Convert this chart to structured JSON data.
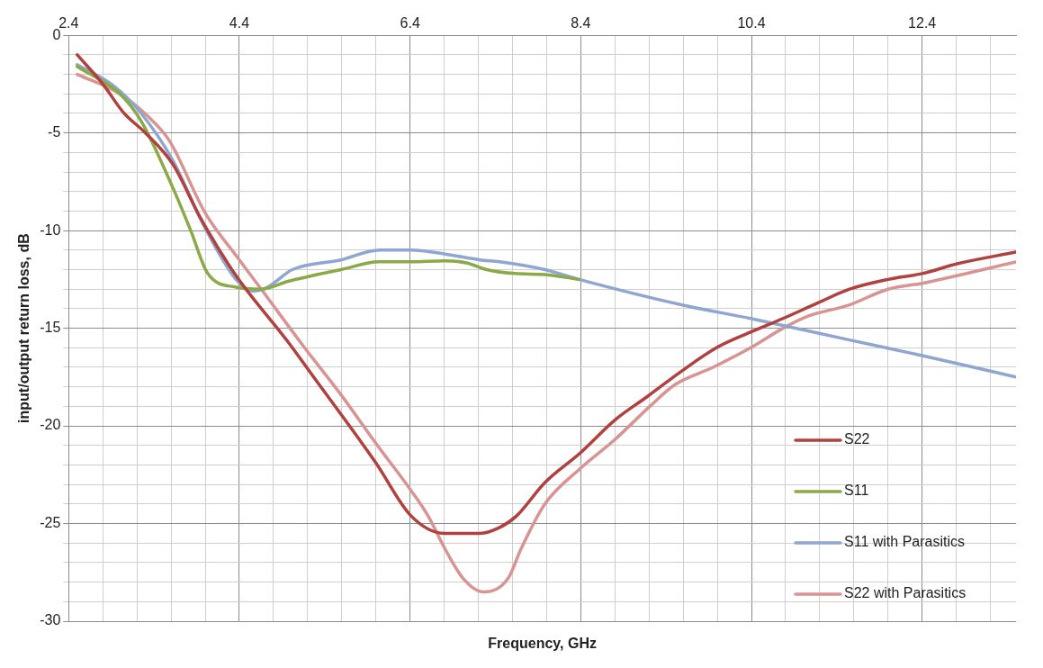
{
  "chart_data": {
    "type": "line",
    "xlabel": "Frequency, GHz",
    "ylabel": "input/output return loss, dB",
    "xlim": [
      2.4,
      13.5
    ],
    "ylim": [
      -30,
      0
    ],
    "xticks": [
      2.4,
      {
        "value": 2.8,
        "label": null
      },
      {
        "value": 3.2,
        "label": null
      },
      {
        "value": 3.6,
        "label": null
      },
      {
        "value": 4.0,
        "label": null
      },
      4.4,
      {
        "value": 4.8,
        "label": null
      },
      {
        "value": 5.2,
        "label": null
      },
      {
        "value": 5.6,
        "label": null
      },
      {
        "value": 6.0,
        "label": null
      },
      6.4,
      {
        "value": 6.8,
        "label": null
      },
      {
        "value": 7.2,
        "label": null
      },
      {
        "value": 7.6,
        "label": null
      },
      {
        "value": 8.0,
        "label": null
      },
      8.4,
      {
        "value": 8.8,
        "label": null
      },
      {
        "value": 9.2,
        "label": null
      },
      {
        "value": 9.6,
        "label": null
      },
      {
        "value": 10.0,
        "label": null
      },
      10.4,
      {
        "value": 10.8,
        "label": null
      },
      {
        "value": 11.2,
        "label": null
      },
      {
        "value": 11.6,
        "label": null
      },
      {
        "value": 12.0,
        "label": null
      },
      12.4,
      {
        "value": 12.8,
        "label": null
      },
      {
        "value": 13.2,
        "label": null
      }
    ],
    "yticks": [
      -30,
      {
        "value": -29,
        "label": null
      },
      {
        "value": -28,
        "label": null
      },
      {
        "value": -27,
        "label": null
      },
      {
        "value": -26,
        "label": null
      },
      -25,
      {
        "value": -24,
        "label": null
      },
      {
        "value": -23,
        "label": null
      },
      {
        "value": -22,
        "label": null
      },
      {
        "value": -21,
        "label": null
      },
      -20,
      {
        "value": -19,
        "label": null
      },
      {
        "value": -18,
        "label": null
      },
      {
        "value": -17,
        "label": null
      },
      {
        "value": -16,
        "label": null
      },
      -15,
      {
        "value": -14,
        "label": null
      },
      {
        "value": -13,
        "label": null
      },
      {
        "value": -12,
        "label": null
      },
      {
        "value": -11,
        "label": null
      },
      -10,
      {
        "value": -9,
        "label": null
      },
      {
        "value": -8,
        "label": null
      },
      {
        "value": -7,
        "label": null
      },
      {
        "value": -6,
        "label": null
      },
      -5,
      {
        "value": -4,
        "label": null
      },
      {
        "value": -3,
        "label": null
      },
      {
        "value": -2,
        "label": null
      },
      {
        "value": -1,
        "label": null
      },
      0
    ],
    "grid": true,
    "legend": "bottom right",
    "marker": "none",
    "line_style": "solid",
    "series": [
      {
        "name": "S22",
        "color": "#b0413e",
        "x": [
          2.5,
          2.8,
          3.05,
          3.3,
          3.62,
          3.95,
          4.36,
          4.97,
          5.22,
          6.0,
          6.41,
          6.8,
          7.22,
          7.45,
          7.65,
          7.98,
          8.39,
          8.8,
          9.18,
          9.58,
          9.99,
          10.39,
          10.77,
          11.18,
          11.55,
          12.0,
          12.4,
          12.81,
          13.5
        ],
        "values": [
          -1.0,
          -2.5,
          -4.0,
          -5.0,
          -6.6,
          -9.4,
          -12.3,
          -15.7,
          -17.2,
          -21.9,
          -24.6,
          -25.5,
          -25.5,
          -25.2,
          -24.6,
          -22.9,
          -21.4,
          -19.7,
          -18.5,
          -17.2,
          -16.0,
          -15.2,
          -14.5,
          -13.7,
          -13.0,
          -12.5,
          -12.2,
          -11.7,
          -11.1
        ]
      },
      {
        "name": "S11",
        "color": "#8aaa48",
        "x": [
          2.5,
          3.0,
          3.25,
          3.62,
          3.83,
          4.03,
          4.36,
          4.65,
          4.97,
          5.59,
          6.04,
          6.41,
          6.81,
          7.06,
          7.3,
          7.63,
          7.98,
          8.38
        ],
        "values": [
          -1.6,
          -3.0,
          -4.4,
          -7.8,
          -10.0,
          -12.2,
          -12.9,
          -13.0,
          -12.6,
          -12.0,
          -11.6,
          -11.6,
          -11.55,
          -11.65,
          -12.0,
          -12.2,
          -12.25,
          -12.5
        ]
      },
      {
        "name": "S11 with Parasitics",
        "color": "#8ea6d1",
        "x": [
          2.5,
          2.93,
          3.25,
          3.62,
          3.99,
          4.36,
          4.56,
          4.73,
          5.02,
          5.59,
          6.04,
          6.41,
          6.81,
          7.22,
          7.45,
          7.98,
          8.38,
          9.58,
          10.39,
          11.55,
          12.4,
          13.5
        ],
        "values": [
          -1.5,
          -2.6,
          -4.0,
          -6.4,
          -9.8,
          -12.5,
          -13.1,
          -12.9,
          -12.0,
          -11.5,
          -11.0,
          -11.0,
          -11.2,
          -11.5,
          -11.6,
          -12.0,
          -12.5,
          -13.8,
          -14.5,
          -15.6,
          -16.4,
          -17.5
        ]
      },
      {
        "name": "S22 with Parasitics",
        "color": "#d79492",
        "x": [
          2.5,
          3.0,
          3.34,
          3.58,
          4.0,
          4.4,
          4.69,
          5.13,
          5.59,
          6.0,
          6.41,
          6.61,
          6.81,
          7.02,
          7.26,
          7.55,
          7.7,
          7.98,
          8.39,
          8.8,
          9.21,
          9.5,
          9.95,
          10.39,
          10.77,
          11.05,
          11.55,
          12.0,
          12.4,
          13.5
        ],
        "values": [
          -2.0,
          -3.0,
          -4.2,
          -5.4,
          -9.1,
          -11.5,
          -13.2,
          -15.8,
          -18.4,
          -20.9,
          -23.3,
          -24.6,
          -26.3,
          -27.8,
          -28.5,
          -27.8,
          -26.3,
          -24.0,
          -22.2,
          -20.7,
          -19.0,
          -17.9,
          -17.0,
          -16.0,
          -15.0,
          -14.4,
          -13.8,
          -13.0,
          -12.7,
          -11.6
        ]
      }
    ]
  }
}
